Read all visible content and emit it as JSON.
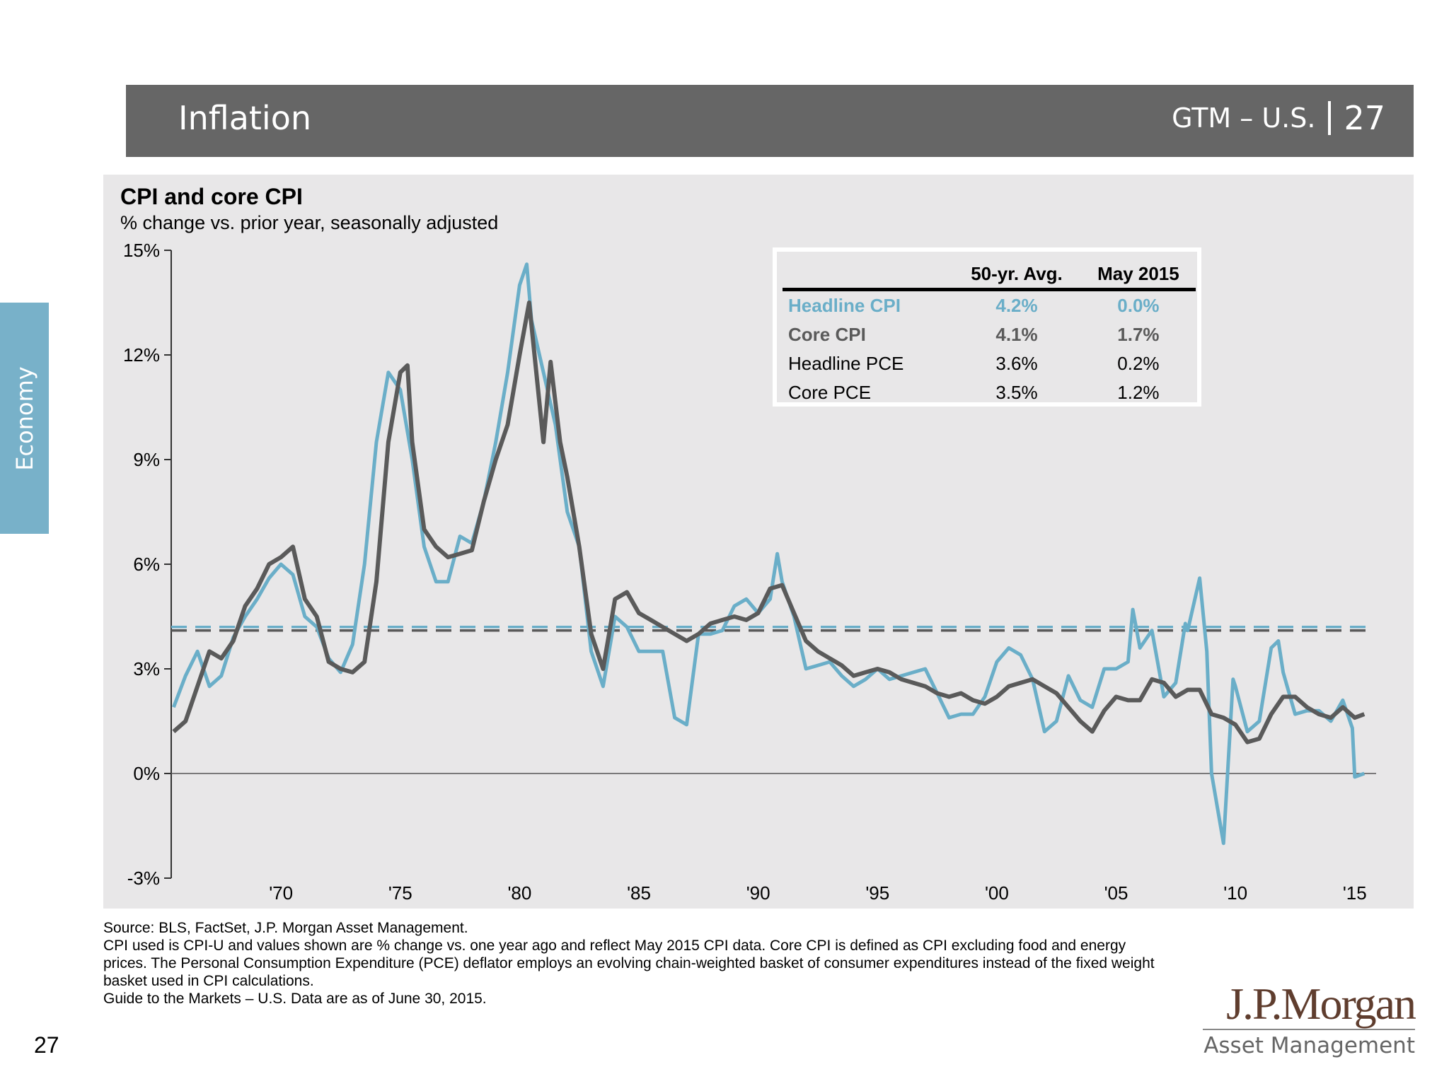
{
  "header": {
    "title": "Inflation",
    "section": "GTM – U.S.",
    "page": "27"
  },
  "side_tab": "Economy",
  "colors": {
    "headline_cpi": "#6aaec8",
    "core_cpi": "#5a5a5a",
    "header_bg": "#666666",
    "brown": "#5f3d2e",
    "panel_bg": "#e8e7e8"
  },
  "chart_data": {
    "type": "line",
    "title": "CPI and core CPI",
    "subtitle": "% change vs. prior year, seasonally adjusted",
    "ylim": [
      -3,
      15
    ],
    "xlim": [
      1965.4,
      2015.6
    ],
    "y_ticks": [
      "-3%",
      "0%",
      "3%",
      "6%",
      "9%",
      "12%",
      "15%"
    ],
    "y_tick_values": [
      -3,
      0,
      3,
      6,
      9,
      12,
      15
    ],
    "x_ticks": [
      "'70",
      "'75",
      "'80",
      "'85",
      "'90",
      "'95",
      "'00",
      "'05",
      "'10",
      "'15"
    ],
    "x_tick_values": [
      1970,
      1975,
      1980,
      1985,
      1990,
      1995,
      2000,
      2005,
      2010,
      2015
    ],
    "series": [
      {
        "name": "Headline CPI",
        "color": "#6aaec8",
        "average": 4.2,
        "points": [
          [
            1965.5,
            1.9
          ],
          [
            1966,
            2.8
          ],
          [
            1966.5,
            3.5
          ],
          [
            1967,
            2.5
          ],
          [
            1967.5,
            2.8
          ],
          [
            1968,
            3.9
          ],
          [
            1968.5,
            4.5
          ],
          [
            1969,
            5.0
          ],
          [
            1969.5,
            5.6
          ],
          [
            1970,
            6.0
          ],
          [
            1970.5,
            5.7
          ],
          [
            1971,
            4.5
          ],
          [
            1971.5,
            4.2
          ],
          [
            1972,
            3.3
          ],
          [
            1972.5,
            2.9
          ],
          [
            1973,
            3.7
          ],
          [
            1973.5,
            6.0
          ],
          [
            1974,
            9.5
          ],
          [
            1974.5,
            11.5
          ],
          [
            1975,
            11.0
          ],
          [
            1975.5,
            9.0
          ],
          [
            1976,
            6.5
          ],
          [
            1976.5,
            5.5
          ],
          [
            1977,
            5.5
          ],
          [
            1977.5,
            6.8
          ],
          [
            1978,
            6.6
          ],
          [
            1978.5,
            7.8
          ],
          [
            1979,
            9.5
          ],
          [
            1979.5,
            11.5
          ],
          [
            1980,
            14.0
          ],
          [
            1980.3,
            14.6
          ],
          [
            1980.5,
            13.0
          ],
          [
            1981,
            11.5
          ],
          [
            1981.5,
            10.0
          ],
          [
            1982,
            7.5
          ],
          [
            1982.5,
            6.5
          ],
          [
            1983,
            3.5
          ],
          [
            1983.5,
            2.5
          ],
          [
            1984,
            4.5
          ],
          [
            1984.5,
            4.2
          ],
          [
            1985,
            3.5
          ],
          [
            1985.5,
            3.5
          ],
          [
            1986,
            3.5
          ],
          [
            1986.5,
            1.6
          ],
          [
            1987,
            1.4
          ],
          [
            1987.5,
            4.0
          ],
          [
            1988,
            4.0
          ],
          [
            1988.5,
            4.1
          ],
          [
            1989,
            4.8
          ],
          [
            1989.5,
            5.0
          ],
          [
            1990,
            4.6
          ],
          [
            1990.5,
            5.0
          ],
          [
            1990.8,
            6.3
          ],
          [
            1991,
            5.5
          ],
          [
            1991.5,
            4.5
          ],
          [
            1992,
            3.0
          ],
          [
            1992.5,
            3.1
          ],
          [
            1993,
            3.2
          ],
          [
            1993.5,
            2.8
          ],
          [
            1994,
            2.5
          ],
          [
            1994.5,
            2.7
          ],
          [
            1995,
            3.0
          ],
          [
            1995.5,
            2.7
          ],
          [
            1996,
            2.8
          ],
          [
            1996.5,
            2.9
          ],
          [
            1997,
            3.0
          ],
          [
            1997.5,
            2.3
          ],
          [
            1998,
            1.6
          ],
          [
            1998.5,
            1.7
          ],
          [
            1999,
            1.7
          ],
          [
            1999.5,
            2.2
          ],
          [
            2000,
            3.2
          ],
          [
            2000.5,
            3.6
          ],
          [
            2001,
            3.4
          ],
          [
            2001.5,
            2.7
          ],
          [
            2002,
            1.2
          ],
          [
            2002.5,
            1.5
          ],
          [
            2003,
            2.8
          ],
          [
            2003.5,
            2.1
          ],
          [
            2004,
            1.9
          ],
          [
            2004.5,
            3.0
          ],
          [
            2005,
            3.0
          ],
          [
            2005.5,
            3.2
          ],
          [
            2005.7,
            4.7
          ],
          [
            2006,
            3.6
          ],
          [
            2006.5,
            4.1
          ],
          [
            2007,
            2.2
          ],
          [
            2007.5,
            2.6
          ],
          [
            2007.9,
            4.3
          ],
          [
            2008,
            4.1
          ],
          [
            2008.5,
            5.6
          ],
          [
            2008.8,
            3.5
          ],
          [
            2009,
            0.0
          ],
          [
            2009.5,
            -2.0
          ],
          [
            2009.9,
            2.7
          ],
          [
            2010,
            2.5
          ],
          [
            2010.5,
            1.2
          ],
          [
            2011,
            1.5
          ],
          [
            2011.5,
            3.6
          ],
          [
            2011.8,
            3.8
          ],
          [
            2012,
            2.9
          ],
          [
            2012.5,
            1.7
          ],
          [
            2013,
            1.8
          ],
          [
            2013.5,
            1.8
          ],
          [
            2014,
            1.5
          ],
          [
            2014.5,
            2.1
          ],
          [
            2014.9,
            1.3
          ],
          [
            2015,
            -0.1
          ],
          [
            2015.4,
            0.0
          ]
        ]
      },
      {
        "name": "Core CPI",
        "color": "#5a5a5a",
        "average": 4.1,
        "points": [
          [
            1965.5,
            1.2
          ],
          [
            1966,
            1.5
          ],
          [
            1966.5,
            2.5
          ],
          [
            1967,
            3.5
          ],
          [
            1967.5,
            3.3
          ],
          [
            1968,
            3.8
          ],
          [
            1968.5,
            4.8
          ],
          [
            1969,
            5.3
          ],
          [
            1969.5,
            6.0
          ],
          [
            1970,
            6.2
          ],
          [
            1970.5,
            6.5
          ],
          [
            1971,
            5.0
          ],
          [
            1971.5,
            4.5
          ],
          [
            1972,
            3.2
          ],
          [
            1972.5,
            3.0
          ],
          [
            1973,
            2.9
          ],
          [
            1973.5,
            3.2
          ],
          [
            1974,
            5.5
          ],
          [
            1974.5,
            9.5
          ],
          [
            1975,
            11.5
          ],
          [
            1975.3,
            11.7
          ],
          [
            1975.5,
            9.5
          ],
          [
            1976,
            7.0
          ],
          [
            1976.5,
            6.5
          ],
          [
            1977,
            6.2
          ],
          [
            1977.5,
            6.3
          ],
          [
            1978,
            6.4
          ],
          [
            1978.5,
            7.8
          ],
          [
            1979,
            9.0
          ],
          [
            1979.5,
            10.0
          ],
          [
            1980,
            12.0
          ],
          [
            1980.4,
            13.5
          ],
          [
            1980.7,
            11.5
          ],
          [
            1981,
            9.5
          ],
          [
            1981.3,
            11.8
          ],
          [
            1981.7,
            9.5
          ],
          [
            1982,
            8.5
          ],
          [
            1982.5,
            6.5
          ],
          [
            1983,
            4.0
          ],
          [
            1983.5,
            3.0
          ],
          [
            1984,
            5.0
          ],
          [
            1984.5,
            5.2
          ],
          [
            1985,
            4.6
          ],
          [
            1985.5,
            4.4
          ],
          [
            1986,
            4.2
          ],
          [
            1986.5,
            4.0
          ],
          [
            1987,
            3.8
          ],
          [
            1987.5,
            4.0
          ],
          [
            1988,
            4.3
          ],
          [
            1988.5,
            4.4
          ],
          [
            1989,
            4.5
          ],
          [
            1989.5,
            4.4
          ],
          [
            1990,
            4.6
          ],
          [
            1990.5,
            5.3
          ],
          [
            1991,
            5.4
          ],
          [
            1991.5,
            4.6
          ],
          [
            1992,
            3.8
          ],
          [
            1992.5,
            3.5
          ],
          [
            1993,
            3.3
          ],
          [
            1993.5,
            3.1
          ],
          [
            1994,
            2.8
          ],
          [
            1994.5,
            2.9
          ],
          [
            1995,
            3.0
          ],
          [
            1995.5,
            2.9
          ],
          [
            1996,
            2.7
          ],
          [
            1996.5,
            2.6
          ],
          [
            1997,
            2.5
          ],
          [
            1997.5,
            2.3
          ],
          [
            1998,
            2.2
          ],
          [
            1998.5,
            2.3
          ],
          [
            1999,
            2.1
          ],
          [
            1999.5,
            2.0
          ],
          [
            2000,
            2.2
          ],
          [
            2000.5,
            2.5
          ],
          [
            2001,
            2.6
          ],
          [
            2001.5,
            2.7
          ],
          [
            2002,
            2.5
          ],
          [
            2002.5,
            2.3
          ],
          [
            2003,
            1.9
          ],
          [
            2003.5,
            1.5
          ],
          [
            2004,
            1.2
          ],
          [
            2004.5,
            1.8
          ],
          [
            2005,
            2.2
          ],
          [
            2005.5,
            2.1
          ],
          [
            2006,
            2.1
          ],
          [
            2006.5,
            2.7
          ],
          [
            2007,
            2.6
          ],
          [
            2007.5,
            2.2
          ],
          [
            2008,
            2.4
          ],
          [
            2008.5,
            2.4
          ],
          [
            2009,
            1.7
          ],
          [
            2009.5,
            1.6
          ],
          [
            2010,
            1.4
          ],
          [
            2010.5,
            0.9
          ],
          [
            2011,
            1.0
          ],
          [
            2011.5,
            1.7
          ],
          [
            2012,
            2.2
          ],
          [
            2012.5,
            2.2
          ],
          [
            2013,
            1.9
          ],
          [
            2013.5,
            1.7
          ],
          [
            2014,
            1.6
          ],
          [
            2014.5,
            1.9
          ],
          [
            2015,
            1.6
          ],
          [
            2015.4,
            1.7
          ]
        ]
      }
    ],
    "table": {
      "headers": [
        "",
        "50-yr. Avg.",
        "May 2015"
      ],
      "rows": [
        {
          "label": "Headline CPI",
          "avg": "4.2%",
          "latest": "0.0%"
        },
        {
          "label": "Core CPI",
          "avg": "4.1%",
          "latest": "1.7%"
        },
        {
          "label": "Headline PCE",
          "avg": "3.6%",
          "latest": "0.2%"
        },
        {
          "label": "Core PCE",
          "avg": "3.5%",
          "latest": "1.2%"
        }
      ]
    },
    "grid": false,
    "legend": "table top-right"
  },
  "footer": {
    "lines": [
      "Source: BLS, FactSet, J.P. Morgan Asset Management.",
      "CPI used is CPI-U and values shown are % change vs. one year ago and reflect May 2015 CPI data. Core CPI is defined as CPI excluding food and energy prices. The Personal Consumption Expenditure (PCE) deflator employs an evolving chain-weighted basket of consumer expenditures instead of the fixed weight basket used in CPI calculations.",
      "Guide to the Markets – U.S. Data are as of June 30, 2015."
    ],
    "page_number": "27"
  },
  "logo": {
    "name": "J.P.Morgan",
    "sub": "Asset Management"
  }
}
